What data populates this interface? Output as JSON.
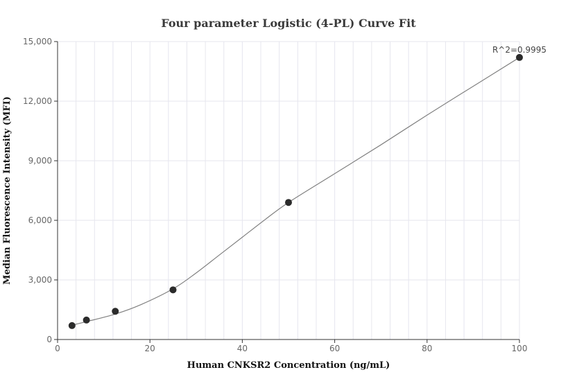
{
  "chart_data": {
    "type": "scatter",
    "title": "Four parameter Logistic (4-PL) Curve Fit",
    "xlabel": "Human CNKSR2 Concentration (ng/mL)",
    "ylabel": "Median Fluorescence Intensity (MFI)",
    "xlim": [
      0,
      100
    ],
    "ylim": [
      0,
      15000
    ],
    "x_ticks": [
      0,
      20,
      40,
      60,
      80,
      100
    ],
    "y_ticks": [
      0,
      3000,
      6000,
      9000,
      12000,
      15000
    ],
    "x_tick_labels": [
      "0",
      "20",
      "40",
      "60",
      "80",
      "100"
    ],
    "y_tick_labels": [
      "0",
      "3,000",
      "6,000",
      "9,000",
      "12,000",
      "15,000"
    ],
    "grid": true,
    "points": [
      {
        "x": 3.125,
        "y": 700
      },
      {
        "x": 6.25,
        "y": 980
      },
      {
        "x": 12.5,
        "y": 1420
      },
      {
        "x": 25,
        "y": 2500
      },
      {
        "x": 50,
        "y": 6900
      },
      {
        "x": 100,
        "y": 14200
      }
    ],
    "fit_curve": [
      {
        "x": 3.125,
        "y": 720
      },
      {
        "x": 6.25,
        "y": 900
      },
      {
        "x": 12.5,
        "y": 1280
      },
      {
        "x": 18,
        "y": 1750
      },
      {
        "x": 25,
        "y": 2550
      },
      {
        "x": 30,
        "y": 3350
      },
      {
        "x": 35,
        "y": 4250
      },
      {
        "x": 40,
        "y": 5150
      },
      {
        "x": 45,
        "y": 6050
      },
      {
        "x": 50,
        "y": 6900
      },
      {
        "x": 60,
        "y": 8350
      },
      {
        "x": 70,
        "y": 9800
      },
      {
        "x": 80,
        "y": 11300
      },
      {
        "x": 90,
        "y": 12750
      },
      {
        "x": 100,
        "y": 14200
      }
    ],
    "annotation": "R^2=0.9995",
    "colors": {
      "points": "#2b2b2b",
      "curve": "#808080",
      "grid": "#e6e6ee"
    }
  }
}
